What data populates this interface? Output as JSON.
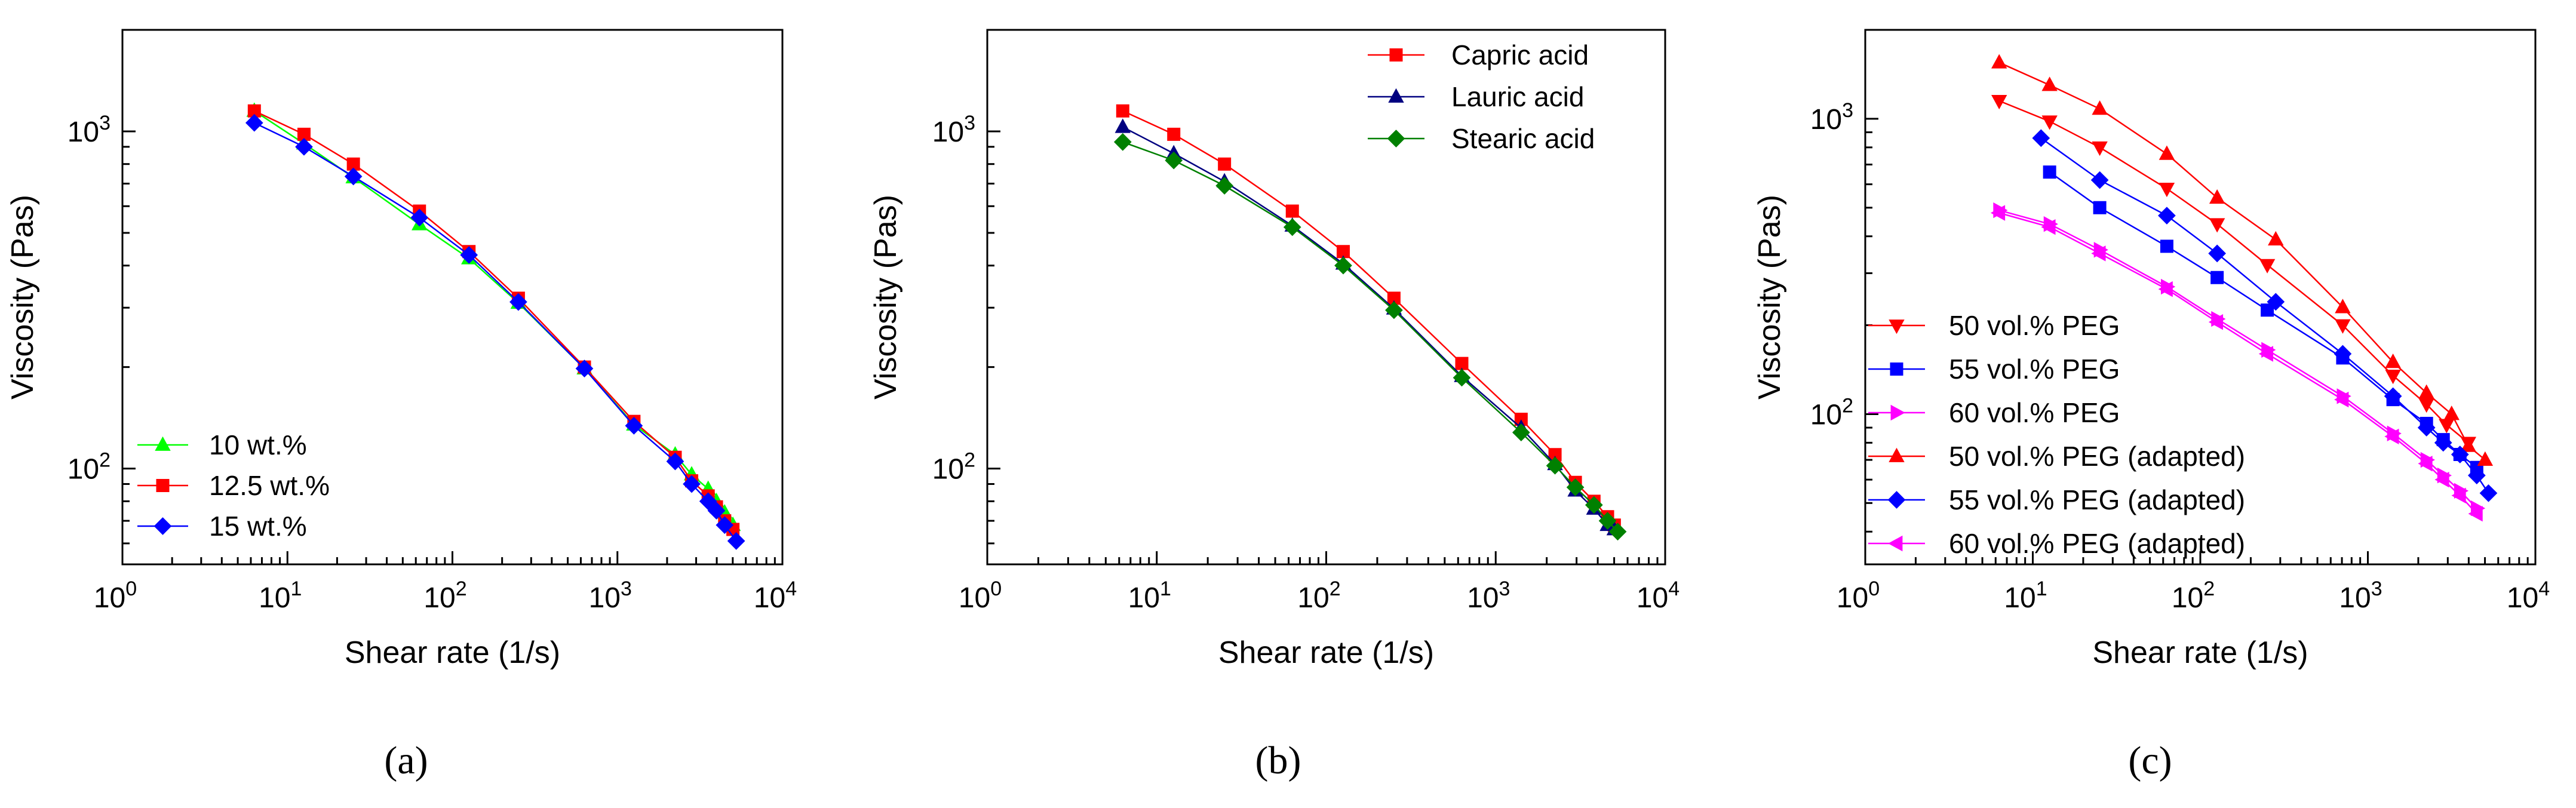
{
  "chart_data": [
    {
      "type": "scatter",
      "caption": "(a)",
      "xlabel": "Shear rate (1/s)",
      "ylabel": "Viscosity (Pas)",
      "xscale": "log",
      "yscale": "log",
      "xlim": [
        1,
        10000
      ],
      "ylim": [
        52,
        2000
      ],
      "xticks": [
        {
          "value": 1,
          "base": "10",
          "exp": "0"
        },
        {
          "value": 10,
          "base": "10",
          "exp": "1"
        },
        {
          "value": 100,
          "base": "10",
          "exp": "2"
        },
        {
          "value": 1000,
          "base": "10",
          "exp": "3"
        },
        {
          "value": 10000,
          "base": "10",
          "exp": "4"
        }
      ],
      "yticks": [
        {
          "value": 100,
          "base": "10",
          "exp": "2"
        },
        {
          "value": 1000,
          "base": "10",
          "exp": "3"
        }
      ],
      "grid": false,
      "legend_position": "bottom-left",
      "series": [
        {
          "name": "10 wt.%",
          "color": "#00ff00",
          "marker": "triangle-up",
          "x": [
            6.3,
            12.6,
            25.1,
            63.1,
            126,
            251,
            631,
            1259,
            2239,
            2818,
            3548,
            3981,
            4467,
            5012
          ],
          "y": [
            1150,
            920,
            730,
            530,
            420,
            310,
            198,
            135,
            110,
            96,
            87,
            80,
            74,
            68
          ]
        },
        {
          "name": "12.5 wt.%",
          "color": "#ff0000",
          "marker": "square",
          "x": [
            6.3,
            12.6,
            25.1,
            63.1,
            126,
            251,
            631,
            1259,
            2239,
            2818,
            3548,
            3981,
            4467,
            5012
          ],
          "y": [
            1150,
            980,
            800,
            580,
            440,
            320,
            200,
            138,
            108,
            92,
            83,
            77,
            70,
            66
          ]
        },
        {
          "name": "15 wt.%",
          "color": "#0000ff",
          "marker": "diamond",
          "x": [
            6.3,
            12.6,
            25.1,
            63.1,
            126,
            251,
            631,
            1259,
            2239,
            2818,
            3548,
            3981,
            4467,
            5248
          ],
          "y": [
            1060,
            900,
            735,
            555,
            430,
            312,
            198,
            134,
            105,
            90,
            80,
            75,
            68,
            61
          ]
        }
      ]
    },
    {
      "type": "scatter",
      "caption": "(b)",
      "xlabel": "Shear rate (1/s)",
      "ylabel": "Viscosity (Pas)",
      "xscale": "log",
      "yscale": "log",
      "xlim": [
        1,
        10000
      ],
      "ylim": [
        52,
        2000
      ],
      "xticks": [
        {
          "value": 1,
          "base": "10",
          "exp": "0"
        },
        {
          "value": 10,
          "base": "10",
          "exp": "1"
        },
        {
          "value": 100,
          "base": "10",
          "exp": "2"
        },
        {
          "value": 1000,
          "base": "10",
          "exp": "3"
        },
        {
          "value": 10000,
          "base": "10",
          "exp": "4"
        }
      ],
      "yticks": [
        {
          "value": 100,
          "base": "10",
          "exp": "2"
        },
        {
          "value": 1000,
          "base": "10",
          "exp": "3"
        }
      ],
      "grid": false,
      "legend_position": "top-right",
      "series": [
        {
          "name": "Capric acid",
          "color": "#ff0000",
          "marker": "square",
          "x": [
            6.3,
            12.6,
            25.1,
            63.1,
            126,
            251,
            631,
            1413,
            2239,
            2951,
            3802,
            4571,
            5012
          ],
          "y": [
            1150,
            980,
            800,
            580,
            440,
            320,
            205,
            140,
            110,
            91,
            80,
            72,
            68
          ]
        },
        {
          "name": "Lauric acid",
          "color": "#000080",
          "marker": "triangle-up",
          "x": [
            6.3,
            12.6,
            25.1,
            63.1,
            126,
            251,
            631,
            1413,
            2239,
            2951,
            3802,
            4571,
            5012
          ],
          "y": [
            1030,
            860,
            710,
            525,
            405,
            298,
            188,
            132,
            103,
            86,
            76,
            68,
            66
          ]
        },
        {
          "name": "Stearic acid",
          "color": "#008000",
          "marker": "diamond",
          "x": [
            6.3,
            12.6,
            25.1,
            63.1,
            126,
            251,
            631,
            1413,
            2239,
            2951,
            3802,
            4571,
            5248
          ],
          "y": [
            930,
            820,
            690,
            520,
            400,
            295,
            186,
            128,
            102,
            88,
            78,
            70,
            65
          ]
        }
      ]
    },
    {
      "type": "scatter",
      "caption": "(c)",
      "xlabel": "Shear rate (1/s)",
      "ylabel": "Viscosity (Pas)",
      "xscale": "log",
      "yscale": "log",
      "xlim": [
        1,
        10000
      ],
      "ylim": [
        31,
        2000
      ],
      "xticks": [
        {
          "value": 1,
          "base": "10",
          "exp": "0"
        },
        {
          "value": 10,
          "base": "10",
          "exp": "1"
        },
        {
          "value": 100,
          "base": "10",
          "exp": "2"
        },
        {
          "value": 1000,
          "base": "10",
          "exp": "3"
        },
        {
          "value": 10000,
          "base": "10",
          "exp": "4"
        }
      ],
      "yticks": [
        {
          "value": 100,
          "base": "10",
          "exp": "2"
        },
        {
          "value": 1000,
          "base": "10",
          "exp": "3"
        }
      ],
      "grid": false,
      "legend_position": "bottom-left",
      "series": [
        {
          "name": "50 vol.% PEG",
          "color": "#ff0000",
          "marker": "triangle-down",
          "x": [
            6.3,
            12.6,
            25.1,
            63.1,
            126,
            251,
            708,
            1413,
            2239,
            2951,
            3981
          ],
          "y": [
            1150,
            980,
            800,
            580,
            440,
            320,
            200,
            135,
            108,
            92,
            80
          ]
        },
        {
          "name": "55 vol.% PEG",
          "color": "#0000ff",
          "marker": "square",
          "x": [
            12.6,
            25.1,
            63.1,
            126,
            251,
            708,
            1413,
            2239,
            2818,
            3548,
            4467
          ],
          "y": [
            660,
            500,
            370,
            290,
            225,
            155,
            112,
            93,
            82,
            73,
            66
          ]
        },
        {
          "name": "60 vol.% PEG",
          "color": "#ff00ff",
          "marker": "triangle-right",
          "x": [
            6.3,
            12.6,
            25.1,
            63.1,
            126,
            251,
            708,
            1413,
            2239,
            2818,
            3548,
            4467
          ],
          "y": [
            490,
            440,
            360,
            270,
            210,
            165,
            115,
            86,
            70,
            62,
            55,
            48
          ]
        },
        {
          "name": "50 vol.% PEG (adapted)",
          "color": "#ff0000",
          "marker": "triangle-up",
          "x": [
            6.3,
            12.6,
            25.1,
            63.1,
            126,
            282,
            708,
            1413,
            2239,
            3162,
            3981,
            5012
          ],
          "y": [
            1550,
            1300,
            1080,
            760,
            540,
            390,
            230,
            150,
            118,
            100,
            78,
            70
          ]
        },
        {
          "name": "55 vol.% PEG (adapted)",
          "color": "#0000ff",
          "marker": "diamond",
          "x": [
            11.2,
            25.1,
            63.1,
            126,
            282,
            708,
            1413,
            2239,
            2818,
            3548,
            4467,
            5248
          ],
          "y": [
            860,
            620,
            470,
            350,
            240,
            160,
            115,
            90,
            80,
            73,
            62,
            54
          ]
        },
        {
          "name": "60 vol.% PEG (adapted)",
          "color": "#ff00ff",
          "marker": "triangle-left",
          "x": [
            6.3,
            12.6,
            25.1,
            63.1,
            126,
            251,
            708,
            1413,
            2239,
            2818,
            3548,
            4467
          ],
          "y": [
            480,
            430,
            350,
            265,
            205,
            160,
            112,
            84,
            68,
            60,
            53,
            46
          ]
        }
      ]
    }
  ]
}
